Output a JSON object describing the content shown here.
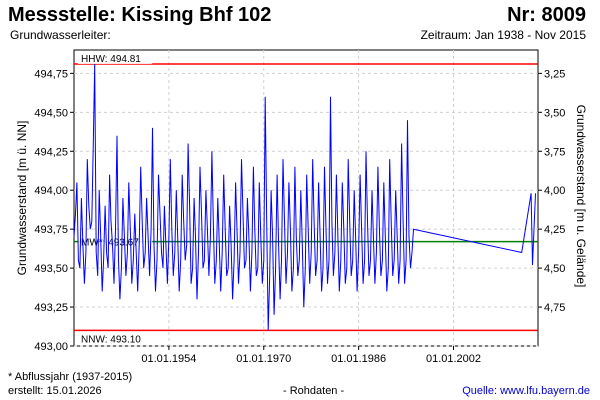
{
  "header": {
    "title": "Messstelle: Kissing Bhf 102",
    "number": "Nr: 8009",
    "aquifer_label": "Grundwasserleiter:",
    "period": "Zeitraum: Jan 1938 - Nov 2015"
  },
  "footer": {
    "note": "* Abflussjahr (1937-2015)",
    "created": "erstellt:  15.01.2026",
    "raw": "- Rohdaten -",
    "source_prefix": "Quelle:",
    "source_url": "www.lfu.bayern.de"
  },
  "chart_data": {
    "type": "line",
    "ylabel": "Grundwasserstand [m ü. NN]",
    "ylabel_right": "Grundwasserstand [m u. Gelände]",
    "ylim": [
      493.0,
      494.9
    ],
    "xlim": [
      "1938-01-01",
      "2016-04-01"
    ],
    "y_ticks": [
      "493,00",
      "493,25",
      "493,50",
      "493,75",
      "494,00",
      "494,25",
      "494,50",
      "494,75"
    ],
    "y_ticks_right": [
      "3,25",
      "3,50",
      "3,75",
      "4,00",
      "4,25",
      "4,50",
      "4,75"
    ],
    "x_ticks": [
      "01.01.1954",
      "01.01.1970",
      "01.01.1986",
      "01.01.2002"
    ],
    "reference_lines": [
      {
        "name": "HHW: 494.81",
        "value": 494.81,
        "color": "#ff0000"
      },
      {
        "name": "MW*: 493.67",
        "value": 493.67,
        "color": "#008000"
      },
      {
        "name": "NNW: 493.10",
        "value": 493.1,
        "color": "#ff0000"
      }
    ],
    "series": [
      {
        "color": "#0000ff",
        "x": [
          "1938-01-01",
          "1938-04-01",
          "1938-07-01",
          "1938-10-01",
          "1939-01-01",
          "1939-04-01",
          "1939-07-01",
          "1939-10-01",
          "1940-01-01",
          "1940-04-01",
          "1940-07-01",
          "1940-10-01",
          "1941-01-01",
          "1941-04-01",
          "1941-07-01",
          "1941-10-01",
          "1942-01-01",
          "1942-04-01",
          "1942-07-01",
          "1942-10-01",
          "1943-01-01",
          "1943-04-01",
          "1943-07-01",
          "1943-10-01",
          "1944-01-01",
          "1944-04-01",
          "1944-07-01",
          "1944-10-01",
          "1945-01-01",
          "1945-04-01",
          "1945-07-01",
          "1945-10-01",
          "1946-01-01",
          "1946-04-01",
          "1946-07-01",
          "1946-10-01",
          "1947-01-01",
          "1947-04-01",
          "1947-07-01",
          "1947-10-01",
          "1948-01-01",
          "1948-04-01",
          "1948-07-01",
          "1948-10-01",
          "1949-01-01",
          "1949-04-01",
          "1949-07-01",
          "1949-10-01",
          "1950-01-01",
          "1950-04-01",
          "1950-07-01",
          "1950-10-01",
          "1951-01-01",
          "1951-04-01",
          "1951-07-01",
          "1951-10-01",
          "1952-01-01",
          "1952-04-01",
          "1952-07-01",
          "1952-10-01",
          "1953-01-01",
          "1953-04-01",
          "1953-07-01",
          "1953-10-01",
          "1954-01-01",
          "1954-04-01",
          "1954-07-01",
          "1954-10-01",
          "1955-01-01",
          "1955-04-01",
          "1955-07-01",
          "1955-10-01",
          "1956-01-01",
          "1956-04-01",
          "1956-07-01",
          "1956-10-01",
          "1957-01-01",
          "1957-04-01",
          "1957-07-01",
          "1957-10-01",
          "1958-01-01",
          "1958-04-01",
          "1958-07-01",
          "1958-10-01",
          "1959-01-01",
          "1959-04-01",
          "1959-07-01",
          "1959-10-01",
          "1960-01-01",
          "1960-04-01",
          "1960-07-01",
          "1960-10-01",
          "1961-01-01",
          "1961-04-01",
          "1961-07-01",
          "1961-10-01",
          "1962-01-01",
          "1962-04-01",
          "1962-07-01",
          "1962-10-01",
          "1963-01-01",
          "1963-04-01",
          "1963-07-01",
          "1963-10-01",
          "1964-01-01",
          "1964-04-01",
          "1964-07-01",
          "1964-10-01",
          "1965-01-01",
          "1965-04-01",
          "1965-07-01",
          "1965-10-01",
          "1966-01-01",
          "1966-04-01",
          "1966-07-01",
          "1966-10-01",
          "1967-01-01",
          "1967-04-01",
          "1967-07-01",
          "1967-10-01",
          "1968-01-01",
          "1968-04-01",
          "1968-07-01",
          "1968-10-01",
          "1969-01-01",
          "1969-04-01",
          "1969-07-01",
          "1969-10-01",
          "1970-01-01",
          "1970-04-01",
          "1970-07-01",
          "1970-10-01",
          "1971-01-01",
          "1971-04-01",
          "1971-07-01",
          "1971-10-01",
          "1972-01-01",
          "1972-04-01",
          "1972-07-01",
          "1972-10-01",
          "1973-01-01",
          "1973-04-01",
          "1973-07-01",
          "1973-10-01",
          "1974-01-01",
          "1974-04-01",
          "1974-07-01",
          "1974-10-01",
          "1975-01-01",
          "1975-04-01",
          "1975-07-01",
          "1975-10-01",
          "1976-01-01",
          "1976-04-01",
          "1976-07-01",
          "1976-10-01",
          "1977-01-01",
          "1977-04-01",
          "1977-07-01",
          "1977-10-01",
          "1978-01-01",
          "1978-04-01",
          "1978-07-01",
          "1978-10-01",
          "1979-01-01",
          "1979-04-01",
          "1979-07-01",
          "1979-10-01",
          "1980-01-01",
          "1980-04-01",
          "1980-07-01",
          "1980-10-01",
          "1981-01-01",
          "1981-04-01",
          "1981-07-01",
          "1981-10-01",
          "1982-01-01",
          "1982-04-01",
          "1982-07-01",
          "1982-10-01",
          "1983-01-01",
          "1983-04-01",
          "1983-07-01",
          "1983-10-01",
          "1984-01-01",
          "1984-04-01",
          "1984-07-01",
          "1984-10-01",
          "1985-01-01",
          "1985-04-01",
          "1985-07-01",
          "1985-10-01",
          "1986-01-01",
          "1986-04-01",
          "1986-07-01",
          "1986-10-01",
          "1987-01-01",
          "1987-04-01",
          "1987-07-01",
          "1987-10-01",
          "1988-01-01",
          "1988-04-01",
          "1988-07-01",
          "1988-10-01",
          "1989-01-01",
          "1989-04-01",
          "1989-07-01",
          "1989-10-01",
          "1990-01-01",
          "1990-04-01",
          "1990-07-01",
          "1990-10-01",
          "1991-01-01",
          "1991-04-01",
          "1991-07-01",
          "1991-10-01",
          "1992-01-01",
          "1992-04-01",
          "1992-07-01",
          "1992-10-01",
          "1993-01-01",
          "1993-04-01",
          "1993-07-01",
          "1993-10-01",
          "1994-01-01",
          "1994-04-01",
          "1994-07-01",
          "1994-10-01",
          "1995-01-01",
          "1995-04-01",
          "2013-07-01",
          "2015-02-01",
          "2015-05-01",
          "2015-11-01"
        ],
        "y": [
          493.7,
          493.85,
          494.05,
          493.55,
          493.5,
          493.95,
          493.65,
          493.4,
          493.6,
          494.2,
          493.9,
          493.75,
          493.8,
          494.3,
          494.81,
          493.6,
          493.45,
          494.0,
          493.7,
          493.35,
          493.55,
          493.9,
          493.6,
          493.5,
          494.1,
          493.8,
          493.65,
          493.4,
          493.75,
          494.35,
          493.55,
          493.3,
          493.5,
          493.95,
          493.7,
          493.45,
          493.6,
          494.05,
          493.75,
          493.4,
          493.55,
          493.85,
          493.6,
          493.35,
          493.65,
          494.15,
          493.8,
          493.5,
          493.6,
          493.95,
          493.7,
          493.45,
          493.75,
          494.4,
          493.65,
          493.35,
          493.55,
          494.1,
          493.85,
          493.6,
          493.5,
          493.9,
          493.65,
          493.4,
          493.7,
          494.2,
          493.75,
          493.45,
          493.6,
          494.0,
          493.7,
          493.35,
          493.55,
          494.1,
          493.8,
          493.55,
          493.65,
          494.3,
          493.9,
          493.4,
          493.5,
          493.95,
          493.7,
          493.3,
          493.6,
          494.15,
          493.85,
          493.5,
          493.55,
          494.0,
          493.75,
          493.45,
          493.7,
          494.25,
          493.8,
          493.4,
          493.55,
          493.95,
          493.65,
          493.35,
          493.6,
          494.1,
          493.75,
          493.45,
          493.5,
          493.9,
          493.65,
          493.3,
          493.55,
          494.05,
          493.75,
          493.4,
          493.6,
          494.2,
          493.85,
          493.5,
          493.55,
          493.95,
          493.7,
          493.35,
          493.6,
          494.15,
          493.75,
          493.45,
          493.5,
          494.05,
          493.7,
          493.4,
          493.55,
          494.6,
          493.8,
          493.1,
          493.45,
          494.0,
          493.7,
          493.2,
          493.5,
          494.1,
          493.65,
          493.3,
          493.55,
          494.2,
          493.8,
          493.4,
          493.6,
          494.05,
          493.75,
          493.35,
          493.5,
          494.15,
          493.7,
          493.45,
          493.55,
          494.0,
          493.65,
          493.25,
          493.5,
          494.1,
          493.75,
          493.4,
          493.6,
          494.2,
          493.8,
          493.45,
          493.55,
          494.05,
          493.7,
          493.35,
          493.5,
          494.15,
          493.75,
          493.4,
          493.55,
          494.6,
          493.8,
          493.45,
          493.6,
          494.1,
          493.7,
          493.35,
          493.55,
          494.05,
          493.75,
          493.4,
          493.5,
          494.2,
          493.8,
          493.45,
          493.55,
          494.0,
          493.7,
          493.35,
          493.6,
          494.1,
          493.75,
          493.4,
          493.55,
          494.25,
          493.8,
          493.45,
          493.55,
          494.0,
          493.7,
          493.4,
          493.6,
          494.15,
          493.75,
          493.45,
          493.55,
          494.05,
          493.7,
          493.35,
          493.5,
          494.2,
          493.8,
          493.45,
          493.55,
          494.0,
          493.7,
          493.4,
          493.55,
          494.3,
          493.8,
          493.4,
          493.55,
          494.45,
          493.7,
          493.5,
          493.6,
          493.75,
          493.6,
          493.98,
          493.52,
          493.98
        ]
      }
    ]
  }
}
